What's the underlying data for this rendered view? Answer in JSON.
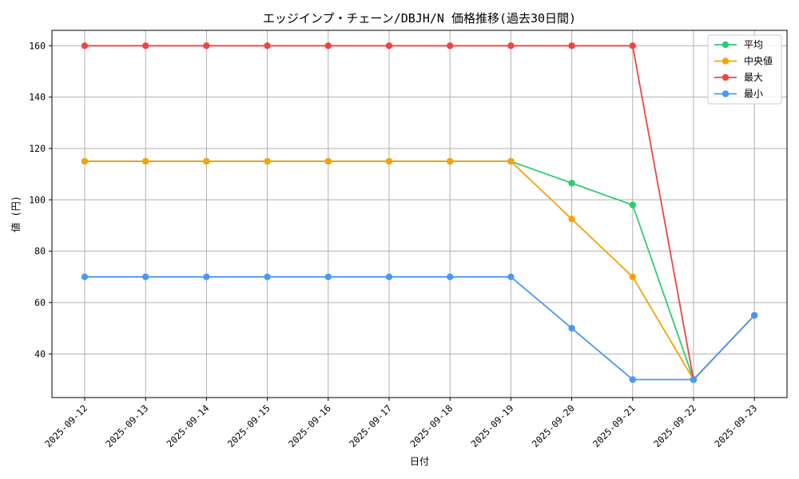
{
  "chart_data": {
    "type": "line",
    "title": "エッジインプ・チェーン/DBJH/N 価格推移(過去30日間)",
    "xlabel": "日付",
    "ylabel": "値 (円)",
    "categories": [
      "2025-09-12",
      "2025-09-13",
      "2025-09-14",
      "2025-09-15",
      "2025-09-16",
      "2025-09-17",
      "2025-09-18",
      "2025-09-19",
      "2025-09-20",
      "2025-09-21",
      "2025-09-22",
      "2025-09-23"
    ],
    "ylim": [
      23,
      166
    ],
    "yticks": [
      40,
      60,
      80,
      100,
      120,
      140,
      160
    ],
    "grid": true,
    "legend_position": "top-right",
    "series": [
      {
        "name": "平均",
        "color": "#2ecc71",
        "values": [
          115,
          115,
          115,
          115,
          115,
          115,
          115,
          115,
          106.5,
          98,
          30,
          55
        ]
      },
      {
        "name": "中央値",
        "color": "#f5a30a",
        "values": [
          115,
          115,
          115,
          115,
          115,
          115,
          115,
          115,
          92.5,
          70,
          30,
          55
        ]
      },
      {
        "name": "最大",
        "color": "#ef4444",
        "values": [
          160,
          160,
          160,
          160,
          160,
          160,
          160,
          160,
          160,
          160,
          30,
          55
        ]
      },
      {
        "name": "最小",
        "color": "#4a98f5",
        "values": [
          70,
          70,
          70,
          70,
          70,
          70,
          70,
          70,
          50,
          30,
          30,
          55
        ]
      }
    ]
  }
}
